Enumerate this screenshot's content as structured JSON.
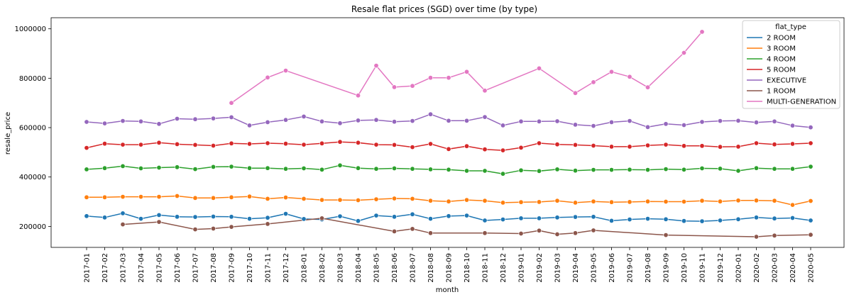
{
  "chart_data": {
    "type": "line",
    "title": "Resale flat prices (SGD) over time (by type)",
    "xlabel": "month",
    "ylabel": "resale_price",
    "ylim": [
      115000,
      1045000
    ],
    "yticks": [
      200000,
      400000,
      600000,
      800000,
      1000000
    ],
    "legend_title": "flat_type",
    "legend_position": "top-right",
    "grid": false,
    "categories": [
      "2017-01",
      "2017-02",
      "2017-03",
      "2017-04",
      "2017-05",
      "2017-06",
      "2017-07",
      "2017-08",
      "2017-09",
      "2017-10",
      "2017-11",
      "2017-12",
      "2018-01",
      "2018-02",
      "2018-03",
      "2018-04",
      "2018-05",
      "2018-06",
      "2018-07",
      "2018-08",
      "2018-09",
      "2018-10",
      "2018-11",
      "2018-12",
      "2019-01",
      "2019-02",
      "2019-03",
      "2019-04",
      "2019-05",
      "2019-06",
      "2019-07",
      "2019-08",
      "2019-09",
      "2019-10",
      "2019-11",
      "2019-12",
      "2020-01",
      "2020-02",
      "2020-03",
      "2020-04",
      "2020-05"
    ],
    "series": [
      {
        "name": "2 ROOM",
        "color": "#1f77b4",
        "values": [
          242000,
          236000,
          253000,
          231000,
          246000,
          239000,
          238000,
          240000,
          239000,
          231000,
          235000,
          251000,
          230000,
          228000,
          241000,
          222000,
          244000,
          239000,
          249000,
          231000,
          242000,
          244000,
          224000,
          228000,
          233000,
          233000,
          236000,
          238000,
          239000,
          223000,
          228000,
          231000,
          229000,
          222000,
          221000,
          224000,
          229000,
          236000,
          232000,
          234000,
          224000
        ]
      },
      {
        "name": "3 ROOM",
        "color": "#ff7f0e",
        "values": [
          318000,
          318000,
          320000,
          320000,
          320000,
          323000,
          315000,
          315000,
          318000,
          321000,
          312000,
          317000,
          312000,
          307000,
          307000,
          306000,
          310000,
          313000,
          312000,
          304000,
          301000,
          307000,
          304000,
          296000,
          298000,
          299000,
          304000,
          296000,
          301000,
          298000,
          299000,
          301000,
          300000,
          300000,
          304000,
          301000,
          305000,
          305000,
          304000,
          287000,
          303000
        ]
      },
      {
        "name": "4 ROOM",
        "color": "#2ca02c",
        "values": [
          431000,
          436000,
          444000,
          435000,
          438000,
          440000,
          432000,
          441000,
          442000,
          436000,
          436000,
          433000,
          435000,
          430000,
          447000,
          436000,
          433000,
          435000,
          433000,
          431000,
          430000,
          425000,
          425000,
          413000,
          427000,
          424000,
          431000,
          426000,
          429000,
          429000,
          430000,
          429000,
          432000,
          430000,
          435000,
          434000,
          425000,
          436000,
          433000,
          433000,
          442000
        ]
      },
      {
        "name": "5 ROOM",
        "color": "#d62728",
        "values": [
          518000,
          535000,
          531000,
          531000,
          539000,
          533000,
          530000,
          527000,
          536000,
          534000,
          537000,
          535000,
          531000,
          536000,
          542000,
          539000,
          531000,
          530000,
          521000,
          534000,
          513000,
          525000,
          512000,
          508000,
          519000,
          537000,
          532000,
          530000,
          527000,
          523000,
          523000,
          528000,
          531000,
          526000,
          526000,
          522000,
          523000,
          537000,
          532000,
          534000,
          537000
        ]
      },
      {
        "name": "EXECUTIVE",
        "color": "#9467bd",
        "values": [
          623000,
          617000,
          627000,
          625000,
          615000,
          636000,
          634000,
          637000,
          642000,
          609000,
          622000,
          631000,
          645000,
          625000,
          618000,
          629000,
          631000,
          624000,
          627000,
          654000,
          628000,
          628000,
          643000,
          609000,
          625000,
          625000,
          626000,
          612000,
          607000,
          622000,
          627000,
          602000,
          615000,
          610000,
          623000,
          627000,
          628000,
          621000,
          625000,
          608000,
          601000
        ]
      },
      {
        "name": "1 ROOM",
        "color": "#8c564b",
        "values": [
          null,
          null,
          208000,
          null,
          218000,
          null,
          188000,
          191000,
          198000,
          null,
          210000,
          null,
          null,
          233000,
          null,
          null,
          null,
          180000,
          190000,
          173000,
          null,
          null,
          173000,
          null,
          171000,
          183000,
          168000,
          173000,
          184000,
          null,
          null,
          null,
          165000,
          null,
          null,
          null,
          null,
          158000,
          163000,
          null,
          166000
        ]
      },
      {
        "name": "MULTI-GENERATION",
        "color": "#e377c2",
        "values": [
          null,
          null,
          null,
          null,
          null,
          null,
          null,
          null,
          700000,
          null,
          803000,
          831000,
          null,
          null,
          null,
          730000,
          851000,
          764000,
          769000,
          802000,
          802000,
          826000,
          750000,
          null,
          null,
          840000,
          null,
          740000,
          784000,
          826000,
          806000,
          763000,
          null,
          903000,
          988000,
          null,
          null,
          null,
          null,
          null,
          null
        ]
      }
    ]
  }
}
